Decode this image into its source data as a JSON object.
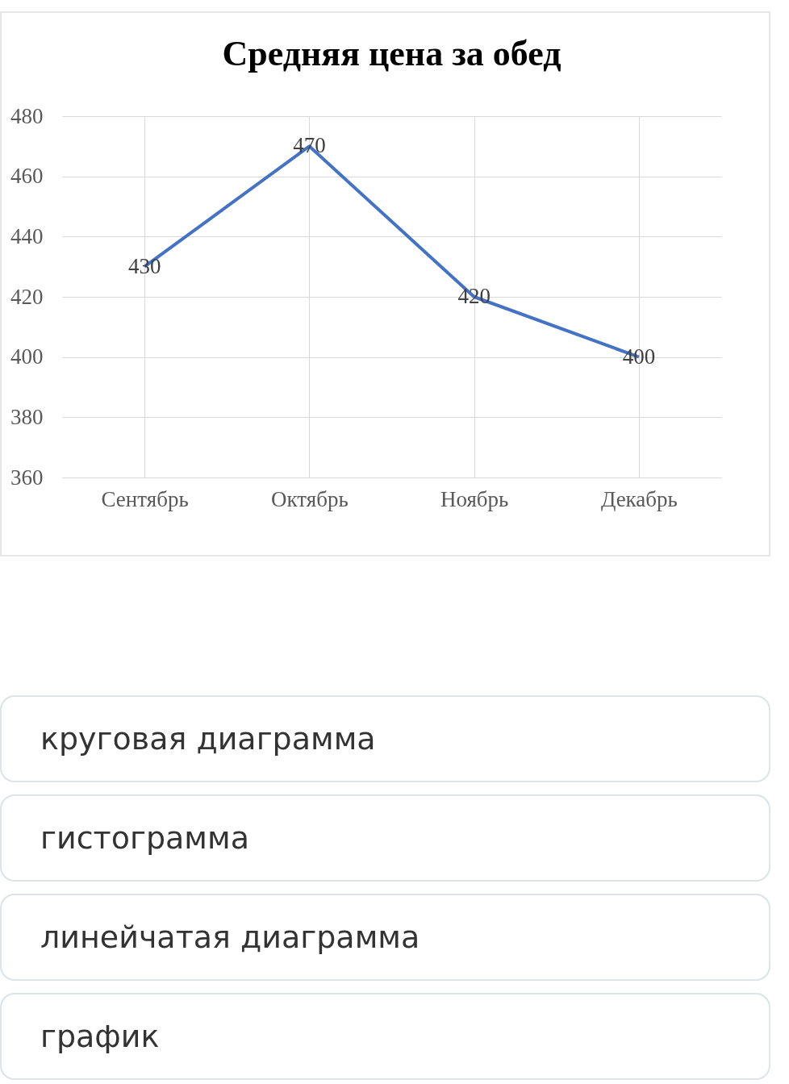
{
  "chart_data": [
    {
      "type": "line",
      "title": "Средняя цена за обед",
      "categories": [
        "Сентябрь",
        "Октябрь",
        "Ноябрь",
        "Декабрь"
      ],
      "series": [
        {
          "color": "#4472c4",
          "values": [
            430,
            470,
            420,
            400
          ]
        }
      ],
      "ylim": [
        360,
        480
      ],
      "yticks": [
        360,
        380,
        400,
        420,
        440,
        460,
        480
      ],
      "grid": true,
      "data_labels": true
    },
    {
      "type": "other",
      "annotations": [
        "круговая диаграмма",
        "гистограмма",
        "линейчатая диаграмма",
        "график"
      ]
    }
  ]
}
